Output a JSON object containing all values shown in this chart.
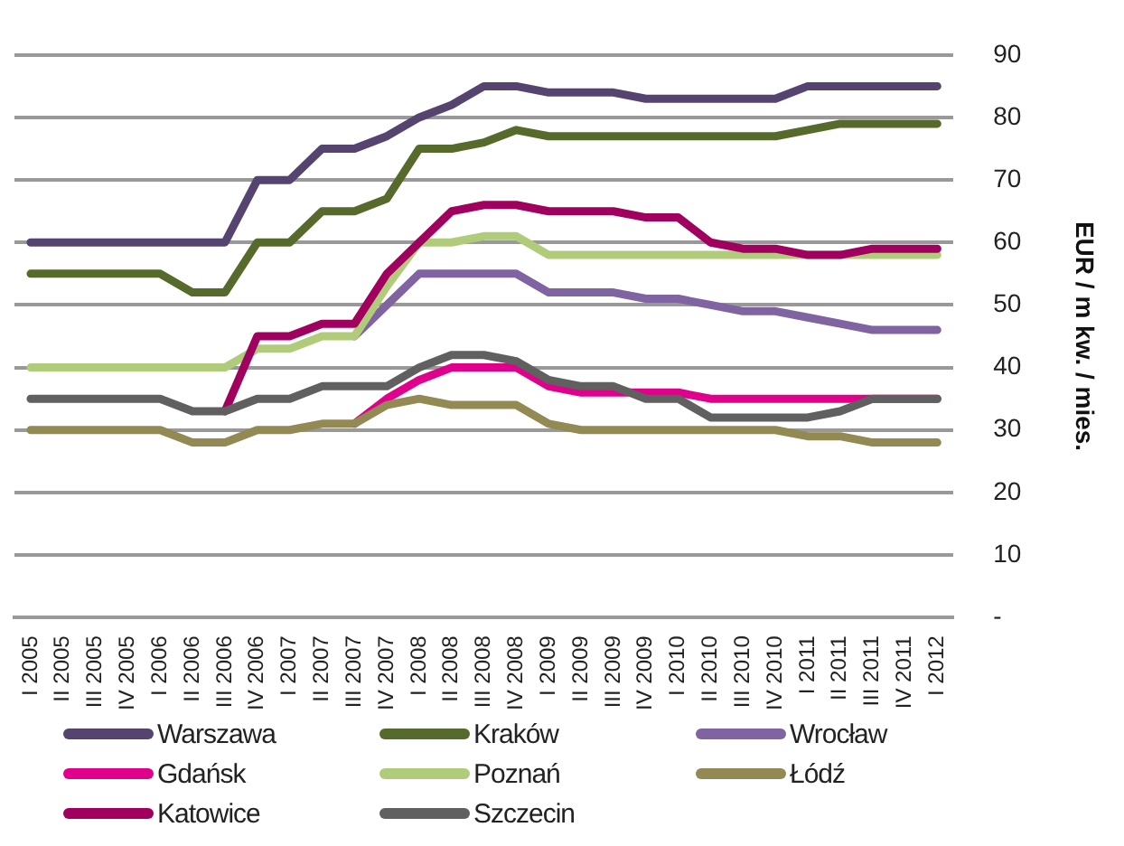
{
  "chart_data": {
    "type": "line",
    "ylabel": "EUR / m kw. / mies.",
    "categories": [
      "I 2005",
      "II 2005",
      "III 2005",
      "IV 2005",
      "I 2006",
      "II 2006",
      "III 2006",
      "IV 2006",
      "I 2007",
      "II 2007",
      "III 2007",
      "IV 2007",
      "I 2008",
      "II 2008",
      "III 2008",
      "IV 2008",
      "I 2009",
      "II 2009",
      "III 2009",
      "IV 2009",
      "I 2010",
      "II 2010",
      "III 2010",
      "IV 2010",
      "I 2011",
      "II 2011",
      "III 2011",
      "IV 2011",
      "I 2012"
    ],
    "series": [
      {
        "name": "Warszawa",
        "color": "#55446f",
        "values": [
          60,
          60,
          60,
          60,
          60,
          60,
          60,
          70,
          70,
          75,
          75,
          77,
          80,
          82,
          85,
          85,
          84,
          84,
          84,
          83,
          83,
          83,
          83,
          83,
          85,
          85,
          85,
          85,
          85
        ]
      },
      {
        "name": "Kraków",
        "color": "#566b2b",
        "values": [
          55,
          55,
          55,
          55,
          55,
          52,
          52,
          60,
          60,
          65,
          65,
          67,
          75,
          75,
          76,
          78,
          77,
          77,
          77,
          77,
          77,
          77,
          77,
          77,
          78,
          79,
          79,
          79,
          79
        ]
      },
      {
        "name": "Wrocław",
        "color": "#8064a2",
        "values": [
          null,
          null,
          null,
          null,
          null,
          null,
          null,
          null,
          null,
          null,
          45,
          50,
          55,
          55,
          55,
          55,
          52,
          52,
          52,
          51,
          51,
          50,
          49,
          49,
          48,
          47,
          46,
          46,
          46
        ]
      },
      {
        "name": "Gdańsk",
        "color": "#e0008c",
        "values": [
          null,
          null,
          null,
          null,
          null,
          null,
          null,
          null,
          null,
          null,
          31,
          35,
          38,
          40,
          40,
          40,
          37,
          36,
          36,
          36,
          36,
          35,
          35,
          35,
          35,
          35,
          35,
          35,
          35
        ]
      },
      {
        "name": "Poznań",
        "color": "#b0cc7a",
        "values": [
          40,
          40,
          40,
          40,
          40,
          40,
          40,
          43,
          43,
          45,
          45,
          53,
          60,
          60,
          61,
          61,
          58,
          58,
          58,
          58,
          58,
          58,
          58,
          58,
          58,
          58,
          58,
          58,
          58
        ]
      },
      {
        "name": "Łódź",
        "color": "#938953",
        "values": [
          30,
          30,
          30,
          30,
          30,
          28,
          28,
          30,
          30,
          31,
          31,
          34,
          35,
          34,
          34,
          34,
          31,
          30,
          30,
          30,
          30,
          30,
          30,
          30,
          29,
          29,
          28,
          28,
          28
        ]
      },
      {
        "name": "Katowice",
        "color": "#a0005e",
        "values": [
          null,
          null,
          null,
          null,
          null,
          null,
          33,
          45,
          45,
          47,
          47,
          55,
          60,
          65,
          66,
          66,
          65,
          65,
          65,
          64,
          64,
          60,
          59,
          59,
          58,
          58,
          59,
          59,
          59
        ]
      },
      {
        "name": "Szczecin",
        "color": "#606060",
        "values": [
          35,
          35,
          35,
          35,
          35,
          33,
          33,
          35,
          35,
          37,
          37,
          37,
          40,
          42,
          42,
          41,
          38,
          37,
          37,
          35,
          35,
          32,
          32,
          32,
          32,
          33,
          35,
          35,
          35
        ]
      }
    ],
    "ylim": [
      0,
      90
    ],
    "yticks": [
      {
        "value": 0,
        "label": "-"
      },
      10,
      20,
      30,
      40,
      50,
      60,
      70,
      80,
      90
    ],
    "grid": "y",
    "legend": "bottom",
    "marker": "none",
    "line_style": "solid"
  }
}
